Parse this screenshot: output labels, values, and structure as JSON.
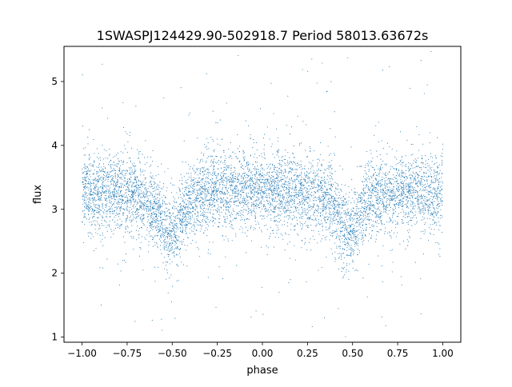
{
  "chart_data": {
    "type": "scatter",
    "title": "1SWASPJ124429.90-502918.7 Period 58013.63672s",
    "xlabel": "phase",
    "ylabel": "flux",
    "xlim": [
      -1.1,
      1.1
    ],
    "ylim": [
      0.92,
      5.55
    ],
    "xticks": [
      -1.0,
      -0.75,
      -0.5,
      -0.25,
      0.0,
      0.25,
      0.5,
      0.75,
      1.0
    ],
    "xtick_labels": [
      "−1.00",
      "−0.75",
      "−0.50",
      "−0.25",
      "0.00",
      "0.25",
      "0.50",
      "0.75",
      "1.00"
    ],
    "yticks": [
      1,
      2,
      3,
      4,
      5
    ],
    "ytick_labels": [
      "1",
      "2",
      "3",
      "4",
      "5"
    ],
    "grid": false,
    "marker_color": "#1f77b4",
    "series": [
      {
        "description": "phase-folded light curve; dense band ~2.6-4.0, dips near phase -0.53 and 0.47",
        "profile": {
          "phase": [
            -1.0,
            -0.9,
            -0.8,
            -0.7,
            -0.6,
            -0.55,
            -0.52,
            -0.48,
            -0.45,
            -0.4,
            -0.3,
            -0.2,
            -0.1,
            0.0,
            0.1,
            0.2,
            0.3,
            0.38,
            0.42,
            0.45,
            0.48,
            0.52,
            0.55,
            0.6,
            0.7,
            0.8,
            0.9,
            1.0
          ],
          "median_flux": [
            3.25,
            3.28,
            3.28,
            3.22,
            3.0,
            2.72,
            2.62,
            2.7,
            2.9,
            3.12,
            3.28,
            3.32,
            3.3,
            3.3,
            3.28,
            3.26,
            3.22,
            3.1,
            2.9,
            2.72,
            2.62,
            2.75,
            2.95,
            3.15,
            3.28,
            3.3,
            3.28,
            3.25
          ]
        }
      }
    ]
  }
}
